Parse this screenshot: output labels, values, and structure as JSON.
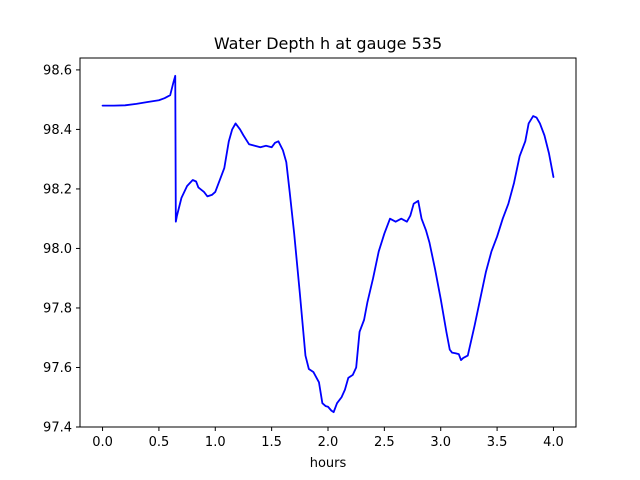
{
  "chart_data": {
    "type": "line",
    "title": "Water Depth h at gauge 535",
    "xlabel": "hours",
    "ylabel": "",
    "xlim": [
      -0.2,
      4.2
    ],
    "ylim": [
      97.4,
      98.64
    ],
    "xticks": [
      "0.0",
      "0.5",
      "1.0",
      "1.5",
      "2.0",
      "2.5",
      "3.0",
      "3.5",
      "4.0"
    ],
    "yticks": [
      "97.4",
      "97.6",
      "97.8",
      "98.0",
      "98.2",
      "98.4",
      "98.6"
    ],
    "grid": false,
    "line_color": "#0000ff",
    "series": [
      {
        "x": [
          0.0,
          0.1,
          0.2,
          0.3,
          0.4,
          0.5,
          0.55,
          0.6,
          0.63,
          0.645,
          0.65,
          0.66,
          0.7,
          0.75,
          0.8,
          0.83,
          0.85,
          0.9,
          0.93,
          0.97,
          1.0,
          1.05,
          1.08,
          1.12,
          1.15,
          1.18,
          1.22,
          1.25,
          1.3,
          1.35,
          1.4,
          1.45,
          1.5,
          1.53,
          1.56,
          1.6,
          1.63,
          1.66,
          1.7,
          1.75,
          1.8,
          1.83,
          1.87,
          1.92,
          1.95,
          1.98,
          2.0,
          2.03,
          2.05,
          2.08,
          2.12,
          2.15,
          2.18,
          2.22,
          2.25,
          2.28,
          2.32,
          2.35,
          2.4,
          2.45,
          2.5,
          2.55,
          2.6,
          2.65,
          2.7,
          2.73,
          2.76,
          2.8,
          2.83,
          2.87,
          2.9,
          2.95,
          3.0,
          3.05,
          3.08,
          3.1,
          3.13,
          3.16,
          3.18,
          3.2,
          3.24,
          3.3,
          3.35,
          3.4,
          3.45,
          3.5,
          3.55,
          3.6,
          3.65,
          3.7,
          3.75,
          3.78,
          3.82,
          3.85,
          3.88,
          3.92,
          3.96,
          4.0
        ],
        "y": [
          98.48,
          98.48,
          98.481,
          98.486,
          98.492,
          98.498,
          98.505,
          98.515,
          98.56,
          98.58,
          98.09,
          98.11,
          98.17,
          98.21,
          98.23,
          98.225,
          98.205,
          98.19,
          98.175,
          98.18,
          98.19,
          98.24,
          98.27,
          98.36,
          98.4,
          98.42,
          98.4,
          98.38,
          98.35,
          98.345,
          98.34,
          98.345,
          98.34,
          98.355,
          98.36,
          98.33,
          98.29,
          98.19,
          98.05,
          97.85,
          97.64,
          97.595,
          97.585,
          97.55,
          97.48,
          97.47,
          97.468,
          97.455,
          97.45,
          97.48,
          97.5,
          97.525,
          97.565,
          97.575,
          97.6,
          97.72,
          97.76,
          97.82,
          97.9,
          97.99,
          98.05,
          98.1,
          98.09,
          98.1,
          98.09,
          98.11,
          98.15,
          98.16,
          98.1,
          98.06,
          98.02,
          97.93,
          97.83,
          97.72,
          97.66,
          97.65,
          97.648,
          97.645,
          97.625,
          97.632,
          97.64,
          97.74,
          97.83,
          97.92,
          97.99,
          98.04,
          98.1,
          98.15,
          98.22,
          98.31,
          98.36,
          98.42,
          98.445,
          98.44,
          98.42,
          98.38,
          98.32,
          98.24
        ]
      }
    ]
  }
}
